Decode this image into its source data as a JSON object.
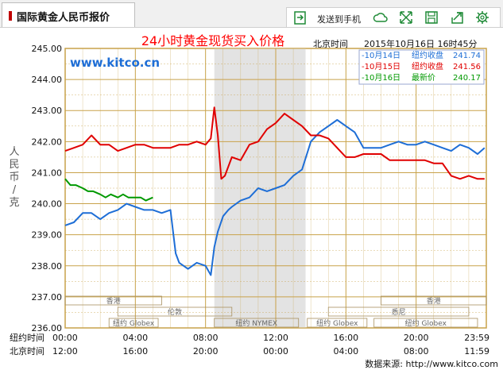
{
  "tab": {
    "title": "国际黄金人民币报价"
  },
  "toolbar": {
    "send_label": "发送到手机",
    "icons": [
      "send-to-phone-icon",
      "cloud-icon",
      "fullscreen-icon",
      "save-icon",
      "share-icon",
      "settings-icon"
    ]
  },
  "colors": {
    "day1": "#1e6ed6",
    "day2": "#e00000",
    "day3": "#009900",
    "title": "#ff0000",
    "accent_green": "#1e8a36",
    "grid": "#c8a24a"
  },
  "chart_data": {
    "type": "line",
    "title": "24小时黄金现货买入价格",
    "timezone_label": "北京时间",
    "timestamp": "2015年10月16日 16时45分",
    "watermark": "www.kitco.cn",
    "ylabel": "人民币/克",
    "ylim": [
      236,
      245
    ],
    "yticks": [
      "245.00",
      "244.00",
      "243.00",
      "242.00",
      "241.00",
      "240.00",
      "239.00",
      "238.00",
      "237.00",
      "236.00"
    ],
    "xlim": [
      0,
      24
    ],
    "xticks_newyork": [
      "00:00",
      "04:00",
      "08:00",
      "12:00",
      "16:00",
      "20:00",
      "23:59"
    ],
    "xticks_beijing": [
      "12:00",
      "16:00",
      "20:00",
      "00:00",
      "04:00",
      "08:00",
      "11:59"
    ],
    "xaxis_label_newyork": "纽约时间",
    "xaxis_label_beijing": "北京时间",
    "shaded_range": [
      8.5,
      13.7
    ],
    "markets_row1": [
      {
        "label": "香港",
        "x0": 0,
        "x1": 5.5
      },
      {
        "label": "香港",
        "x0": 18,
        "x1": 24
      }
    ],
    "markets_row2": [
      {
        "label": "伦敦",
        "x0": 3,
        "x1": 9.5
      },
      {
        "label": "悉尼",
        "x0": 15,
        "x1": 23
      }
    ],
    "markets_row3": [
      {
        "label": "纽约 Globex",
        "x0": 2.5,
        "x1": 5.3
      },
      {
        "label": "纽约 NYMEX",
        "x0": 8.5,
        "x1": 13.3
      },
      {
        "label": "纽约 Globex",
        "x0": 13.8,
        "x1": 17.2
      },
      {
        "label": "纽约 Globex",
        "x0": 17.6,
        "x1": 23.5
      }
    ],
    "source": "数据来源: http://www.kitco.com",
    "legend": [
      {
        "name": "10月14日",
        "stat_label": "纽约收盘",
        "value": "241.74"
      },
      {
        "name": "10月15日",
        "stat_label": "纽约收盘",
        "value": "241.56"
      },
      {
        "name": "10月16日",
        "stat_label": "最新价",
        "value": "240.17"
      }
    ],
    "series": [
      {
        "name": "10月14日",
        "x": [
          0,
          0.5,
          1,
          1.5,
          2,
          2.5,
          3,
          3.5,
          4,
          4.5,
          5,
          5.5,
          6,
          6.3,
          6.5,
          7,
          7.5,
          8,
          8.3,
          8.5,
          8.7,
          9,
          9.3,
          9.5,
          10,
          10.5,
          11,
          11.5,
          12,
          12.5,
          13,
          13.5,
          14,
          14.5,
          15,
          15.5,
          16,
          16.5,
          17,
          17.5,
          18,
          18.5,
          19,
          19.5,
          20,
          20.5,
          21,
          21.5,
          22,
          22.5,
          23,
          23.5,
          23.9
        ],
        "y": [
          239.3,
          239.4,
          239.7,
          239.7,
          239.5,
          239.7,
          239.8,
          240.0,
          239.9,
          239.8,
          239.8,
          239.7,
          239.8,
          238.4,
          238.1,
          237.9,
          238.1,
          238.0,
          237.7,
          238.6,
          239.1,
          239.6,
          239.8,
          239.9,
          240.1,
          240.2,
          240.5,
          240.4,
          240.5,
          240.6,
          240.9,
          241.1,
          242.0,
          242.3,
          242.5,
          242.7,
          242.5,
          242.3,
          241.8,
          241.8,
          241.8,
          241.9,
          242.0,
          241.9,
          241.9,
          242.0,
          241.9,
          241.8,
          241.7,
          241.9,
          241.8,
          241.6,
          241.8
        ]
      },
      {
        "name": "10月15日",
        "x": [
          0,
          0.5,
          1,
          1.5,
          2,
          2.5,
          3,
          3.5,
          4,
          4.5,
          5,
          5.5,
          6,
          6.5,
          7,
          7.5,
          8,
          8.3,
          8.5,
          8.7,
          8.9,
          9.1,
          9.3,
          9.5,
          10,
          10.5,
          11,
          11.5,
          12,
          12.5,
          13,
          13.5,
          14,
          14.5,
          15,
          15.5,
          16,
          16.5,
          17,
          17.5,
          18,
          18.5,
          19,
          19.5,
          20,
          20.5,
          21,
          21.5,
          22,
          22.5,
          23,
          23.5,
          23.9
        ],
        "y": [
          241.7,
          241.8,
          241.9,
          242.2,
          241.9,
          241.9,
          241.7,
          241.8,
          241.9,
          241.9,
          241.8,
          241.8,
          241.8,
          241.9,
          241.9,
          242.0,
          241.9,
          242.1,
          243.1,
          242.2,
          240.8,
          240.9,
          241.2,
          241.5,
          241.4,
          241.9,
          242.0,
          242.4,
          242.6,
          242.9,
          242.7,
          242.5,
          242.2,
          242.2,
          242.1,
          241.8,
          241.5,
          241.5,
          241.6,
          241.6,
          241.6,
          241.4,
          241.4,
          241.4,
          241.4,
          241.4,
          241.3,
          241.3,
          240.9,
          240.8,
          240.9,
          240.8,
          240.8
        ]
      },
      {
        "name": "10月16日",
        "x": [
          0,
          0.3,
          0.6,
          1,
          1.3,
          1.6,
          2,
          2.3,
          2.6,
          3,
          3.3,
          3.6,
          4,
          4.3,
          4.6,
          5
        ],
        "y": [
          240.8,
          240.6,
          240.6,
          240.5,
          240.4,
          240.4,
          240.3,
          240.2,
          240.3,
          240.2,
          240.3,
          240.2,
          240.2,
          240.2,
          240.1,
          240.2
        ]
      }
    ]
  }
}
